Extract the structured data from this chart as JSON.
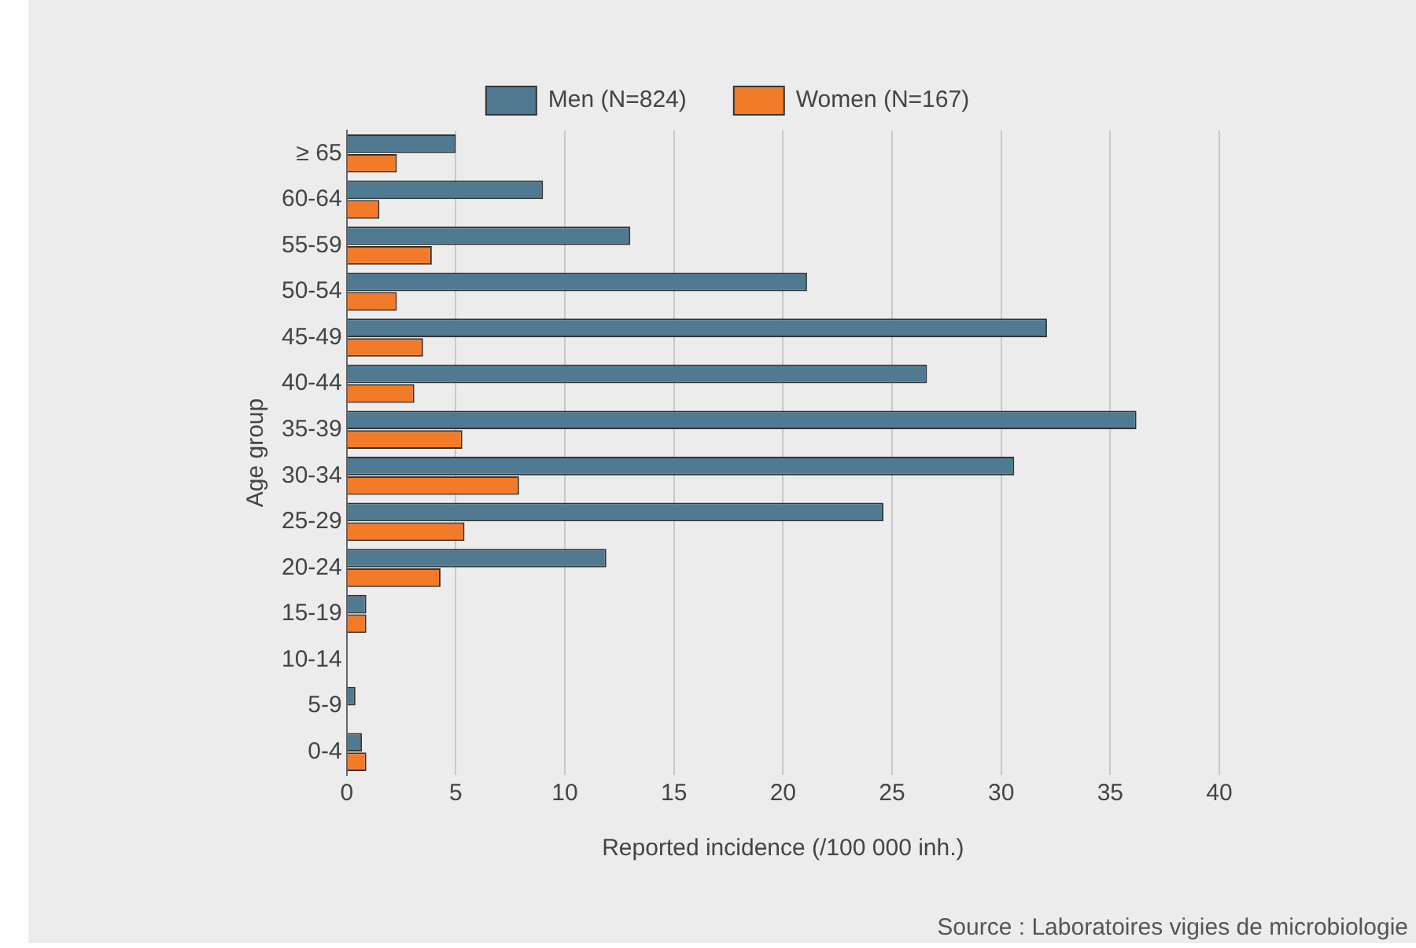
{
  "chart_data": {
    "type": "bar",
    "orientation": "horizontal",
    "xlabel": "Reported incidence (/100 000 inh.)",
    "ylabel": "Age group",
    "categories": [
      "≥ 65",
      "60-64",
      "55-59",
      "50-54",
      "45-49",
      "40-44",
      "35-39",
      "30-34",
      "25-29",
      "20-24",
      "15-19",
      "10-14",
      "5-9",
      "0-4"
    ],
    "series": [
      {
        "name": "Men (N=824)",
        "color": "#4f7a92",
        "values": [
          5.0,
          9.0,
          13.0,
          21.1,
          32.1,
          26.6,
          36.2,
          30.6,
          24.6,
          11.9,
          0.9,
          0,
          0.4,
          0.7
        ]
      },
      {
        "name": "Women (N=167)",
        "color": "#f27b2a",
        "values": [
          2.3,
          1.5,
          3.9,
          2.3,
          3.5,
          3.1,
          5.3,
          7.9,
          5.4,
          4.3,
          0.9,
          0,
          0,
          0.9
        ]
      }
    ],
    "xlim": [
      0,
      40
    ],
    "xticks": [
      0,
      5,
      10,
      15,
      20,
      25,
      30,
      35,
      40
    ],
    "grid": "x",
    "legend": "top",
    "annotations": [
      "Source : Laboratoires vigies de microbiologie"
    ]
  }
}
